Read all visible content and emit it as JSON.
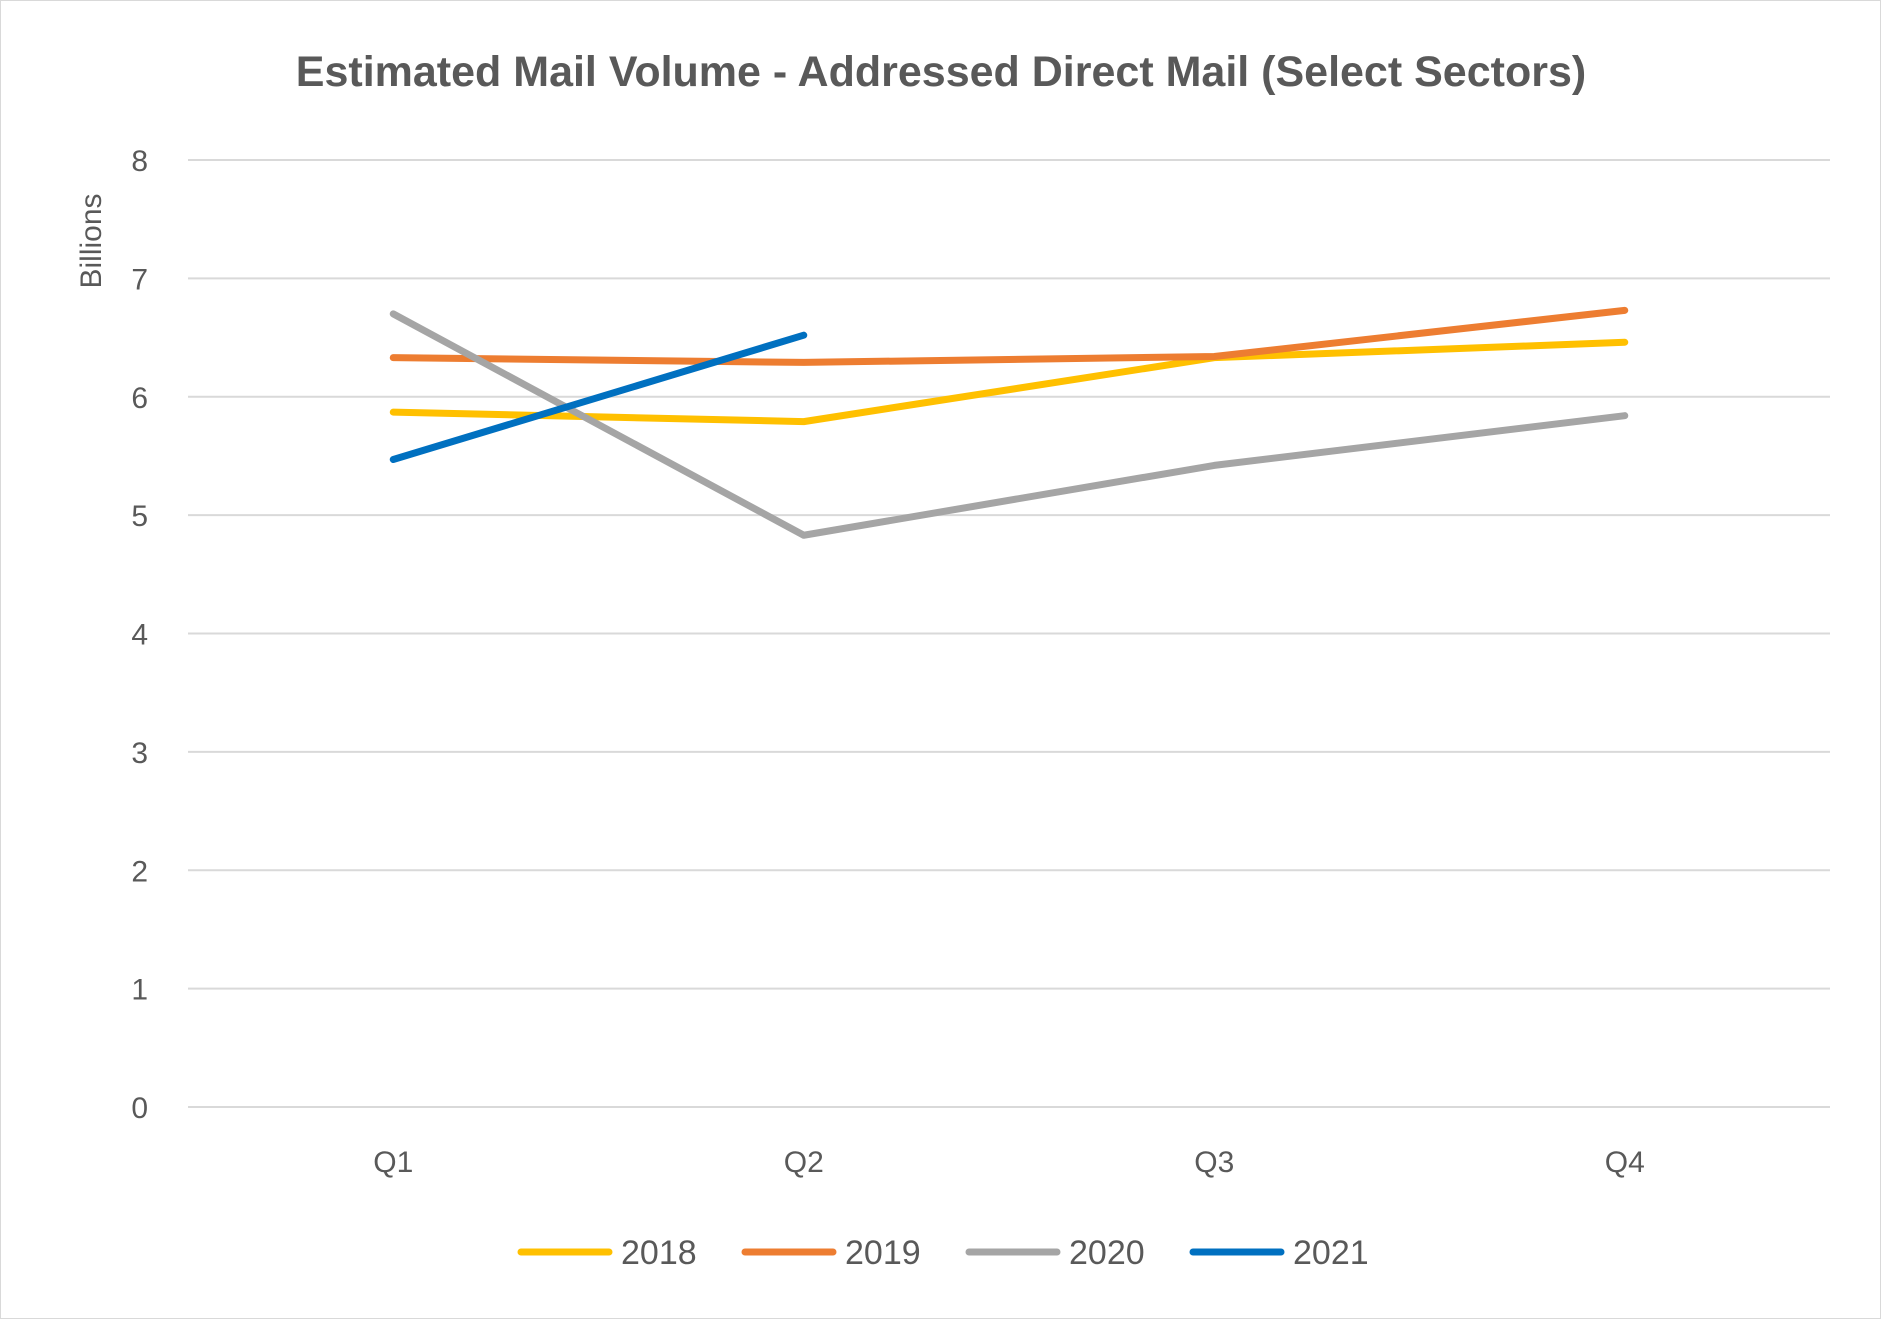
{
  "chart_data": {
    "type": "line",
    "title": "Estimated Mail Volume - Addressed Direct Mail (Select Sectors)",
    "xlabel": "",
    "ylabel": "Billions",
    "categories": [
      "Q1",
      "Q2",
      "Q3",
      "Q4"
    ],
    "ylim": [
      0,
      8
    ],
    "yticks": [
      0,
      1,
      2,
      3,
      4,
      5,
      6,
      7,
      8
    ],
    "grid": true,
    "legend_position": "bottom",
    "series": [
      {
        "name": "2018",
        "color": "#FFC000",
        "values": [
          5.87,
          5.79,
          6.33,
          6.46
        ]
      },
      {
        "name": "2019",
        "color": "#ED7D31",
        "values": [
          6.33,
          6.29,
          6.34,
          6.73
        ]
      },
      {
        "name": "2020",
        "color": "#A5A5A5",
        "values": [
          6.7,
          4.83,
          5.42,
          5.84
        ]
      },
      {
        "name": "2021",
        "color": "#0070C0",
        "values": [
          5.47,
          6.52,
          null,
          null
        ]
      }
    ]
  }
}
